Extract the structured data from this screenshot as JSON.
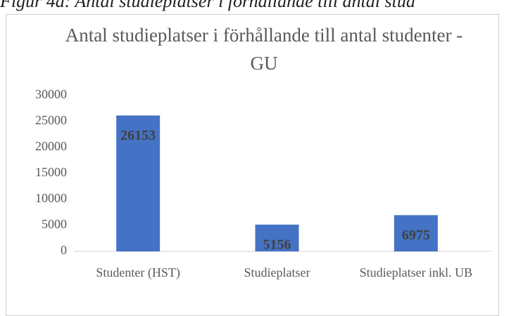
{
  "caption": "Figur 4a: Antal studieplatser i förhållande till antal stud",
  "chart_data": {
    "type": "bar",
    "title": "Antal studieplatser i förhållande till antal studenter - GU",
    "categories": [
      "Studenter (HST)",
      "Studieplatser",
      "Studieplatser inkl. UB"
    ],
    "values": [
      26153,
      5156,
      6975
    ],
    "color": "#4472c4",
    "ylim": [
      0,
      30000
    ],
    "yticks": [
      0,
      5000,
      10000,
      15000,
      20000,
      25000,
      30000
    ],
    "grid": false
  }
}
